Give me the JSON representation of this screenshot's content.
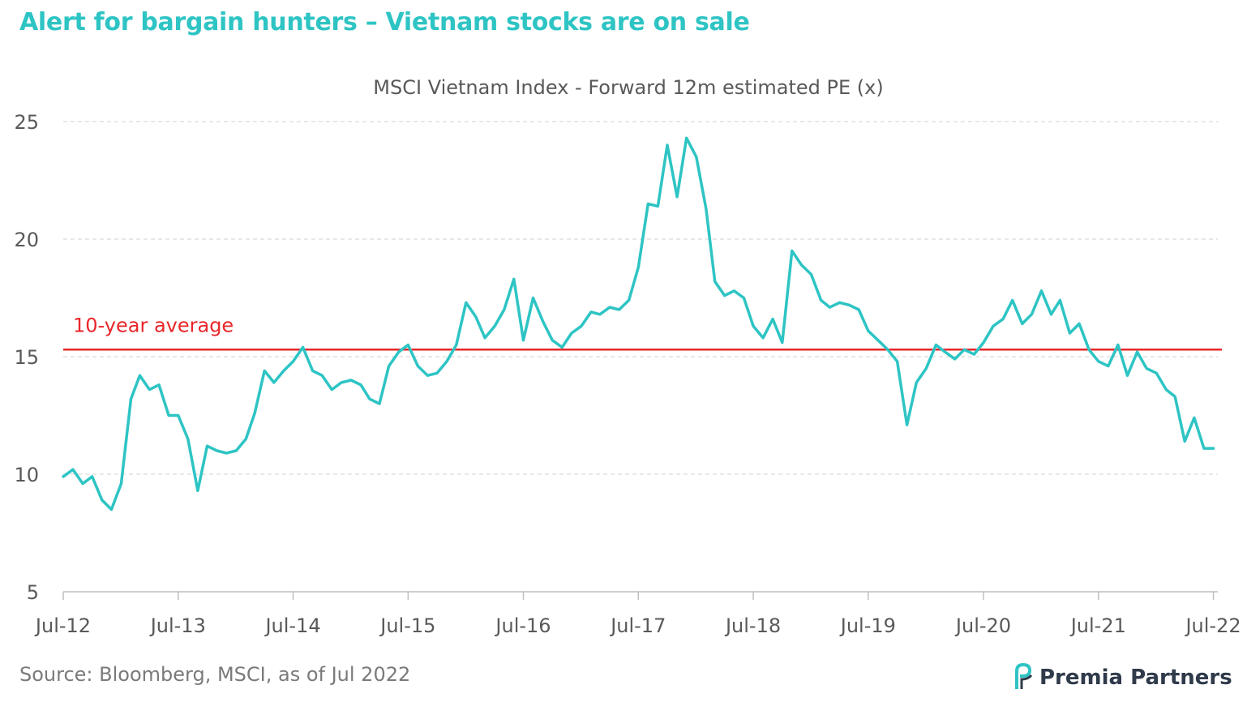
{
  "headline": "Alert for bargain hunters – Vietnam stocks are on sale",
  "source": "Source: Bloomberg, MSCI, as of Jul 2022",
  "brand": {
    "name": "Premia Partners",
    "logo_icon": "premia-logo-icon",
    "color": "#2f3a4a",
    "accent": "#2EC4C4"
  },
  "chart_data": {
    "type": "line",
    "title": "MSCI Vietnam Index  - Forward 12m estimated PE (x)",
    "xlabel": "",
    "ylabel": "",
    "ylim": [
      5,
      25
    ],
    "yticks": [
      5,
      10,
      15,
      20,
      25
    ],
    "xticks": [
      "Jul-12",
      "Jul-13",
      "Jul-14",
      "Jul-15",
      "Jul-16",
      "Jul-17",
      "Jul-18",
      "Jul-19",
      "Jul-20",
      "Jul-21",
      "Jul-22"
    ],
    "grid": "horizontal dashed",
    "colors": {
      "series": "#2EC4C4",
      "average": "#E8262A",
      "grid": "#d9d9d9"
    },
    "series": [
      {
        "values": [
          [
            "2012-07",
            9.9
          ],
          [
            "2012-08",
            10.2
          ],
          [
            "2012-09",
            9.6
          ],
          [
            "2012-10",
            9.9
          ],
          [
            "2012-11",
            8.9
          ],
          [
            "2012-12",
            8.5
          ],
          [
            "2013-01",
            9.6
          ],
          [
            "2013-02",
            13.2
          ],
          [
            "2013-03",
            14.2
          ],
          [
            "2013-04",
            13.6
          ],
          [
            "2013-05",
            13.8
          ],
          [
            "2013-06",
            12.5
          ],
          [
            "2013-07",
            12.5
          ],
          [
            "2013-08",
            11.5
          ],
          [
            "2013-09",
            9.3
          ],
          [
            "2013-10",
            11.2
          ],
          [
            "2013-11",
            11.0
          ],
          [
            "2013-12",
            10.9
          ],
          [
            "2014-01",
            11.0
          ],
          [
            "2014-02",
            11.5
          ],
          [
            "2014-03",
            12.6
          ],
          [
            "2014-04",
            14.4
          ],
          [
            "2014-05",
            13.9
          ],
          [
            "2014-06",
            14.4
          ],
          [
            "2014-07",
            14.8
          ],
          [
            "2014-08",
            15.4
          ],
          [
            "2014-09",
            14.4
          ],
          [
            "2014-10",
            14.2
          ],
          [
            "2014-11",
            13.6
          ],
          [
            "2014-12",
            13.9
          ],
          [
            "2015-01",
            14.0
          ],
          [
            "2015-02",
            13.8
          ],
          [
            "2015-03",
            13.2
          ],
          [
            "2015-04",
            13.0
          ],
          [
            "2015-05",
            14.6
          ],
          [
            "2015-06",
            15.2
          ],
          [
            "2015-07",
            15.5
          ],
          [
            "2015-08",
            14.6
          ],
          [
            "2015-09",
            14.2
          ],
          [
            "2015-10",
            14.3
          ],
          [
            "2015-11",
            14.8
          ],
          [
            "2015-12",
            15.5
          ],
          [
            "2016-01",
            17.3
          ],
          [
            "2016-02",
            16.7
          ],
          [
            "2016-03",
            15.8
          ],
          [
            "2016-04",
            16.3
          ],
          [
            "2016-05",
            17.0
          ],
          [
            "2016-06",
            18.3
          ],
          [
            "2016-07",
            15.7
          ],
          [
            "2016-08",
            17.5
          ],
          [
            "2016-09",
            16.5
          ],
          [
            "2016-10",
            15.7
          ],
          [
            "2016-11",
            15.4
          ],
          [
            "2016-12",
            16.0
          ],
          [
            "2017-01",
            16.3
          ],
          [
            "2017-02",
            16.9
          ],
          [
            "2017-03",
            16.8
          ],
          [
            "2017-04",
            17.1
          ],
          [
            "2017-05",
            17.0
          ],
          [
            "2017-06",
            17.4
          ],
          [
            "2017-07",
            18.8
          ],
          [
            "2017-08",
            21.5
          ],
          [
            "2017-09",
            21.4
          ],
          [
            "2017-10",
            24.0
          ],
          [
            "2017-11",
            21.8
          ],
          [
            "2017-12",
            24.3
          ],
          [
            "2018-01",
            23.5
          ],
          [
            "2018-02",
            21.3
          ],
          [
            "2018-03",
            18.2
          ],
          [
            "2018-04",
            17.6
          ],
          [
            "2018-05",
            17.8
          ],
          [
            "2018-06",
            17.5
          ],
          [
            "2018-07",
            16.3
          ],
          [
            "2018-08",
            15.8
          ],
          [
            "2018-09",
            16.6
          ],
          [
            "2018-10",
            15.6
          ],
          [
            "2018-11",
            19.5
          ],
          [
            "2018-12",
            18.9
          ],
          [
            "2019-01",
            18.5
          ],
          [
            "2019-02",
            17.4
          ],
          [
            "2019-03",
            17.1
          ],
          [
            "2019-04",
            17.3
          ],
          [
            "2019-05",
            17.2
          ],
          [
            "2019-06",
            17.0
          ],
          [
            "2019-07",
            16.1
          ],
          [
            "2019-08",
            15.7
          ],
          [
            "2019-09",
            15.3
          ],
          [
            "2019-10",
            14.8
          ],
          [
            "2019-11",
            12.1
          ],
          [
            "2019-12",
            13.9
          ],
          [
            "2020-01",
            14.5
          ],
          [
            "2020-02",
            15.5
          ],
          [
            "2020-03",
            15.2
          ],
          [
            "2020-04",
            14.9
          ],
          [
            "2020-05",
            15.3
          ],
          [
            "2020-06",
            15.1
          ],
          [
            "2020-07",
            15.6
          ],
          [
            "2020-08",
            16.3
          ],
          [
            "2020-09",
            16.6
          ],
          [
            "2020-10",
            17.4
          ],
          [
            "2020-11",
            16.4
          ],
          [
            "2020-12",
            16.8
          ],
          [
            "2021-01",
            17.8
          ],
          [
            "2021-02",
            16.8
          ],
          [
            "2021-03",
            17.4
          ],
          [
            "2021-04",
            16.0
          ],
          [
            "2021-05",
            16.4
          ],
          [
            "2021-06",
            15.3
          ],
          [
            "2021-07",
            14.8
          ],
          [
            "2021-08",
            14.6
          ],
          [
            "2021-09",
            15.5
          ],
          [
            "2021-10",
            14.2
          ],
          [
            "2021-11",
            15.2
          ],
          [
            "2021-12",
            14.5
          ],
          [
            "2022-01",
            14.3
          ],
          [
            "2022-02",
            13.6
          ],
          [
            "2022-03",
            13.3
          ],
          [
            "2022-04",
            11.4
          ],
          [
            "2022-05",
            12.4
          ],
          [
            "2022-06",
            11.1
          ],
          [
            "2022-07",
            11.1
          ]
        ]
      }
    ],
    "annotations": [
      {
        "text": "10-year average",
        "y": 15.3,
        "type": "horizontal_line"
      }
    ]
  }
}
